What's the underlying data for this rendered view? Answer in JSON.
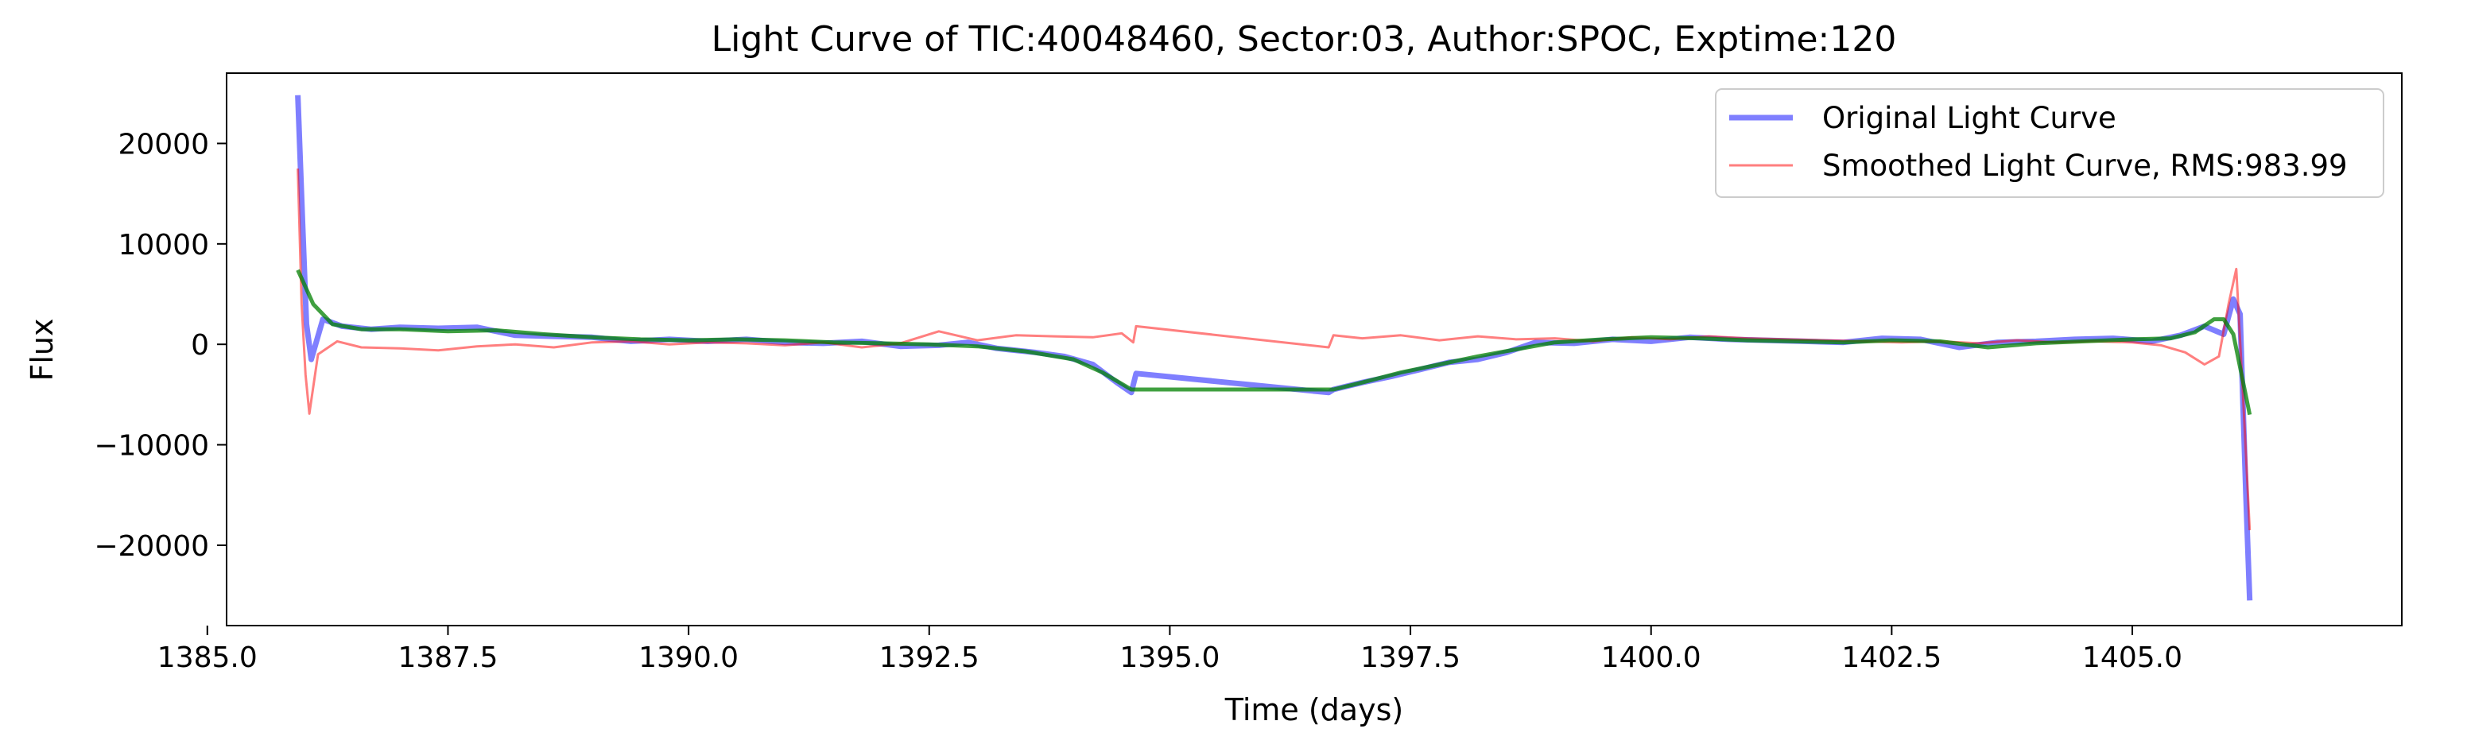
{
  "chart_data": {
    "type": "line",
    "title": "Light Curve of TIC:40048460, Sector:03, Author:SPOC, Exptime:120",
    "xlabel": "Time (days)",
    "ylabel": "Flux",
    "xlim": [
      1385.2,
      1407.8
    ],
    "ylim": [
      -28000,
      27000
    ],
    "xticks": [
      1385.0,
      1387.5,
      1390.0,
      1392.5,
      1395.0,
      1397.5,
      1400.0,
      1402.5,
      1405.0
    ],
    "xtick_labels": [
      "1385.0",
      "1387.5",
      "1390.0",
      "1392.5",
      "1395.0",
      "1397.5",
      "1400.0",
      "1402.5",
      "1405.0"
    ],
    "yticks": [
      -20000,
      -10000,
      0,
      10000,
      20000
    ],
    "ytick_labels": [
      "−20000",
      "−10000",
      "0",
      "10000",
      "20000"
    ],
    "grid": false,
    "legend_position": "top-right",
    "series": [
      {
        "name": "Original Light Curve",
        "color": "#0000ff",
        "x": [
          1385.94,
          1385.99,
          1386.03,
          1386.08,
          1386.2,
          1386.4,
          1386.7,
          1387.0,
          1387.4,
          1387.8,
          1388.2,
          1388.6,
          1389.0,
          1389.4,
          1389.8,
          1390.2,
          1390.6,
          1391.0,
          1391.4,
          1391.8,
          1392.2,
          1392.6,
          1392.9,
          1393.2,
          1393.6,
          1393.9,
          1394.2,
          1394.45,
          1394.6,
          1394.65,
          1396.65,
          1396.7,
          1397.0,
          1397.3,
          1397.6,
          1397.9,
          1398.2,
          1398.5,
          1398.8,
          1399.2,
          1399.6,
          1400.0,
          1400.4,
          1400.8,
          1401.2,
          1401.6,
          1402.0,
          1402.4,
          1402.8,
          1403.2,
          1403.6,
          1404.0,
          1404.4,
          1404.8,
          1405.2,
          1405.5,
          1405.75,
          1405.95,
          1406.05,
          1406.12,
          1406.18,
          1406.22
        ],
        "values": [
          24800,
          12000,
          2000,
          -1500,
          2500,
          1800,
          1500,
          1700,
          1600,
          1700,
          900,
          800,
          700,
          300,
          500,
          300,
          500,
          200,
          100,
          300,
          -200,
          -100,
          200,
          -400,
          -800,
          -1200,
          -2000,
          -3800,
          -4800,
          -2900,
          -4800,
          -4500,
          -3800,
          -3200,
          -2500,
          -1800,
          -1500,
          -800,
          200,
          100,
          500,
          300,
          700,
          500,
          400,
          300,
          200,
          600,
          500,
          -300,
          200,
          300,
          500,
          600,
          300,
          900,
          1800,
          1000,
          4500,
          3000,
          -15000,
          -25500
        ]
      },
      {
        "name": "Smoothed Light Curve, RMS:983.99",
        "color": "#ff0000",
        "x": [
          1385.94,
          1385.98,
          1386.02,
          1386.06,
          1386.15,
          1386.35,
          1386.6,
          1387.0,
          1387.4,
          1387.8,
          1388.2,
          1388.6,
          1389.0,
          1389.4,
          1389.8,
          1390.2,
          1390.6,
          1391.0,
          1391.4,
          1391.8,
          1392.2,
          1392.6,
          1393.0,
          1393.4,
          1393.8,
          1394.2,
          1394.5,
          1394.62,
          1394.65,
          1396.65,
          1396.7,
          1397.0,
          1397.4,
          1397.8,
          1398.2,
          1398.6,
          1399.0,
          1399.4,
          1399.8,
          1400.2,
          1400.6,
          1401.0,
          1401.4,
          1401.8,
          1402.2,
          1402.6,
          1403.0,
          1403.4,
          1403.8,
          1404.2,
          1404.6,
          1405.0,
          1405.3,
          1405.55,
          1405.75,
          1405.9,
          1406.0,
          1406.08,
          1406.15,
          1406.22
        ],
        "values": [
          17500,
          4000,
          -3000,
          -6900,
          -1000,
          300,
          -300,
          -400,
          -600,
          -200,
          0,
          -300,
          200,
          300,
          0,
          200,
          100,
          -100,
          200,
          -300,
          100,
          1300,
          400,
          900,
          800,
          700,
          1100,
          200,
          1800,
          -300,
          900,
          600,
          900,
          400,
          800,
          500,
          600,
          300,
          700,
          500,
          800,
          600,
          500,
          400,
          300,
          200,
          300,
          100,
          400,
          200,
          300,
          200,
          -100,
          -800,
          -2000,
          -1200,
          4000,
          7500,
          -5000,
          -18500
        ]
      },
      {
        "name": "",
        "color": "#008000",
        "x": [
          1385.94,
          1386.1,
          1386.3,
          1386.6,
          1387.0,
          1387.5,
          1388.0,
          1388.5,
          1389.0,
          1389.5,
          1390.0,
          1390.5,
          1391.0,
          1391.5,
          1392.0,
          1392.5,
          1393.0,
          1393.5,
          1394.0,
          1394.3,
          1394.6,
          1396.7,
          1397.0,
          1397.4,
          1397.8,
          1398.2,
          1398.6,
          1399.0,
          1399.5,
          1400.0,
          1400.5,
          1401.0,
          1401.5,
          1402.0,
          1402.5,
          1403.0,
          1403.5,
          1404.0,
          1404.5,
          1405.0,
          1405.4,
          1405.65,
          1405.85,
          1405.95,
          1406.05,
          1406.22
        ],
        "values": [
          7400,
          4000,
          2000,
          1500,
          1500,
          1300,
          1400,
          1000,
          700,
          500,
          400,
          500,
          400,
          200,
          100,
          0,
          -200,
          -700,
          -1500,
          -2800,
          -4500,
          -4500,
          -3800,
          -2800,
          -2000,
          -1200,
          -500,
          200,
          500,
          700,
          600,
          400,
          300,
          200,
          400,
          300,
          -300,
          100,
          300,
          500,
          600,
          1200,
          2500,
          2500,
          1000,
          -7000
        ]
      }
    ]
  }
}
